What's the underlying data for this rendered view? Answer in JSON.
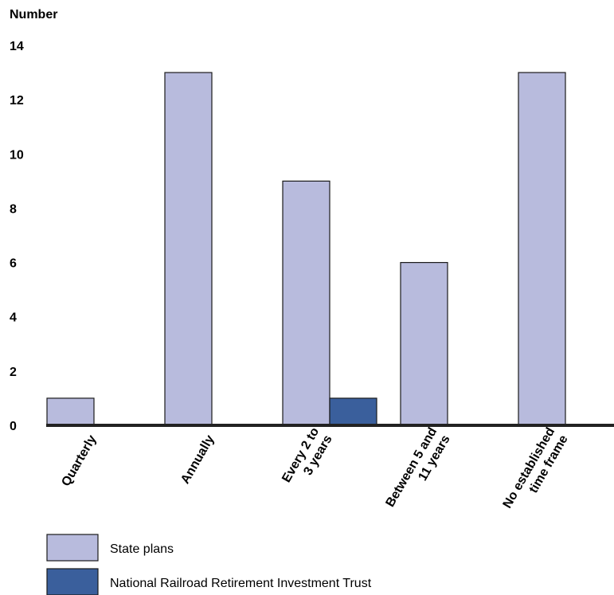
{
  "chart_data": {
    "type": "bar",
    "ylabel": "Number",
    "ylim": [
      0,
      14
    ],
    "yticks": [
      "0",
      "2",
      "4",
      "6",
      "8",
      "10",
      "12",
      "14"
    ],
    "grid": false,
    "legend_position": "bottom-left",
    "categories": [
      [
        "Quarterly"
      ],
      [
        "Annually"
      ],
      [
        "Every 2 to",
        "3 years"
      ],
      [
        "Between 5 and",
        "11 years"
      ],
      [
        "No established",
        "time frame"
      ]
    ],
    "series": [
      {
        "name": "State plans",
        "color": "#b8bbdd",
        "values": [
          1,
          13,
          9,
          6,
          13
        ]
      },
      {
        "name": "National Railroad Retirement Investment Trust",
        "color": "#3a5f9c",
        "values": [
          0,
          0,
          1,
          0,
          0
        ]
      }
    ]
  }
}
